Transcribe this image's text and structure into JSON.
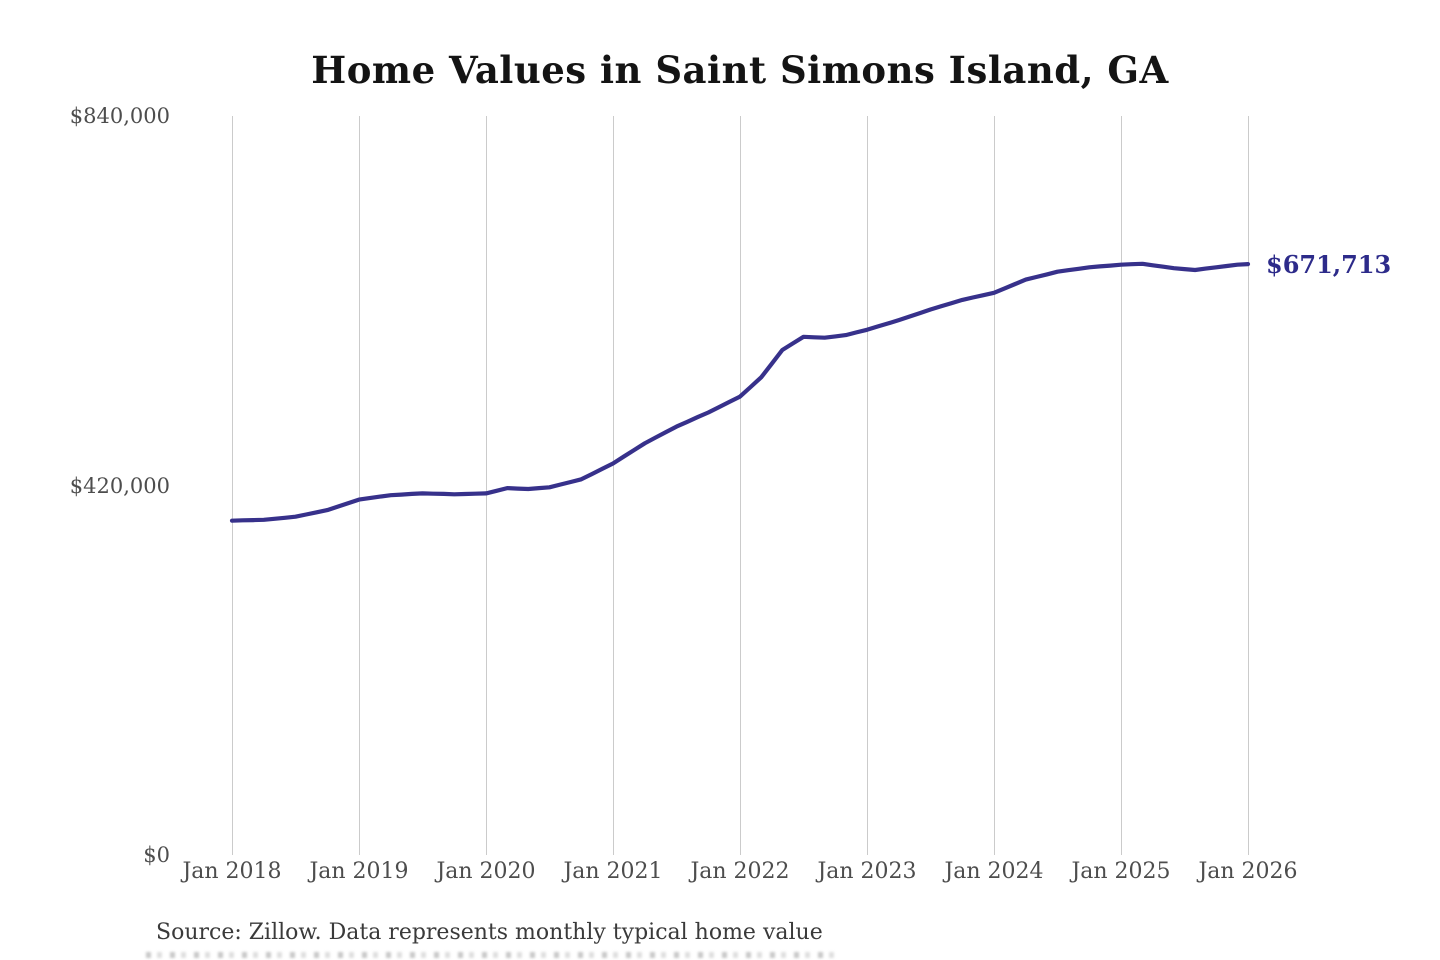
{
  "header": {
    "title": "Home Values in Saint Simons Island, GA"
  },
  "end_label": "$671,713",
  "source_note": "Source: Zillow. Data represents monthly typical home value",
  "colors": {
    "line": "#37318b",
    "end_label": "#2d2b8a",
    "gridline": "#cbcbcb",
    "tick_text": "#4d4d4d",
    "title_text": "#141414",
    "source_text": "#3a3a3a",
    "background": "#ffffff"
  },
  "chart_data": {
    "type": "line",
    "title": "Home Values in Saint Simons Island, GA",
    "xlabel": "",
    "ylabel": "",
    "ylim": [
      0,
      840000
    ],
    "grid": "vertical-only",
    "legend_position": "none",
    "x_tick_labels": [
      "Jan 2018",
      "Jan 2019",
      "Jan 2020",
      "Jan 2021",
      "Jan 2022",
      "Jan 2023",
      "Jan 2024",
      "Jan 2025",
      "Jan 2026"
    ],
    "y_ticks": [
      {
        "label": "$0",
        "value": 0
      },
      {
        "label": "$420,000",
        "value": 420000
      },
      {
        "label": "$840,000",
        "value": 840000
      }
    ],
    "x_start_month": "2018-01",
    "x_end_month": "2026-01",
    "x_interval": "monthly",
    "final_value": 671713,
    "final_value_label": "$671,713",
    "series": [
      {
        "name": "Typical home value",
        "values": [
          380000,
          380400,
          380700,
          381000,
          382100,
          383300,
          384500,
          387000,
          389500,
          392000,
          396000,
          400000,
          404000,
          405700,
          407400,
          409000,
          409700,
          410400,
          411000,
          410700,
          410400,
          410000,
          410300,
          410700,
          411000,
          414000,
          417000,
          416500,
          416000,
          417000,
          418000,
          421000,
          424000,
          427000,
          433000,
          439000,
          445000,
          452700,
          460300,
          468000,
          474300,
          480700,
          487000,
          492300,
          497700,
          503000,
          509000,
          515000,
          521000,
          532000,
          543000,
          558500,
          574000,
          581500,
          589000,
          588500,
          588000,
          589500,
          591000,
          594000,
          597000,
          600700,
          604300,
          608000,
          612000,
          616000,
          620000,
          623700,
          627300,
          631000,
          633700,
          636300,
          639000,
          644000,
          649000,
          654000,
          657000,
          660000,
          663000,
          664700,
          666300,
          668000,
          669000,
          670000,
          671000,
          671500,
          672000,
          670300,
          668700,
          667000,
          666000,
          665000,
          666500,
          668000,
          669500,
          671000,
          671713
        ]
      }
    ],
    "source": "Source: Zillow. Data represents monthly typical home value"
  },
  "layout_note": ""
}
